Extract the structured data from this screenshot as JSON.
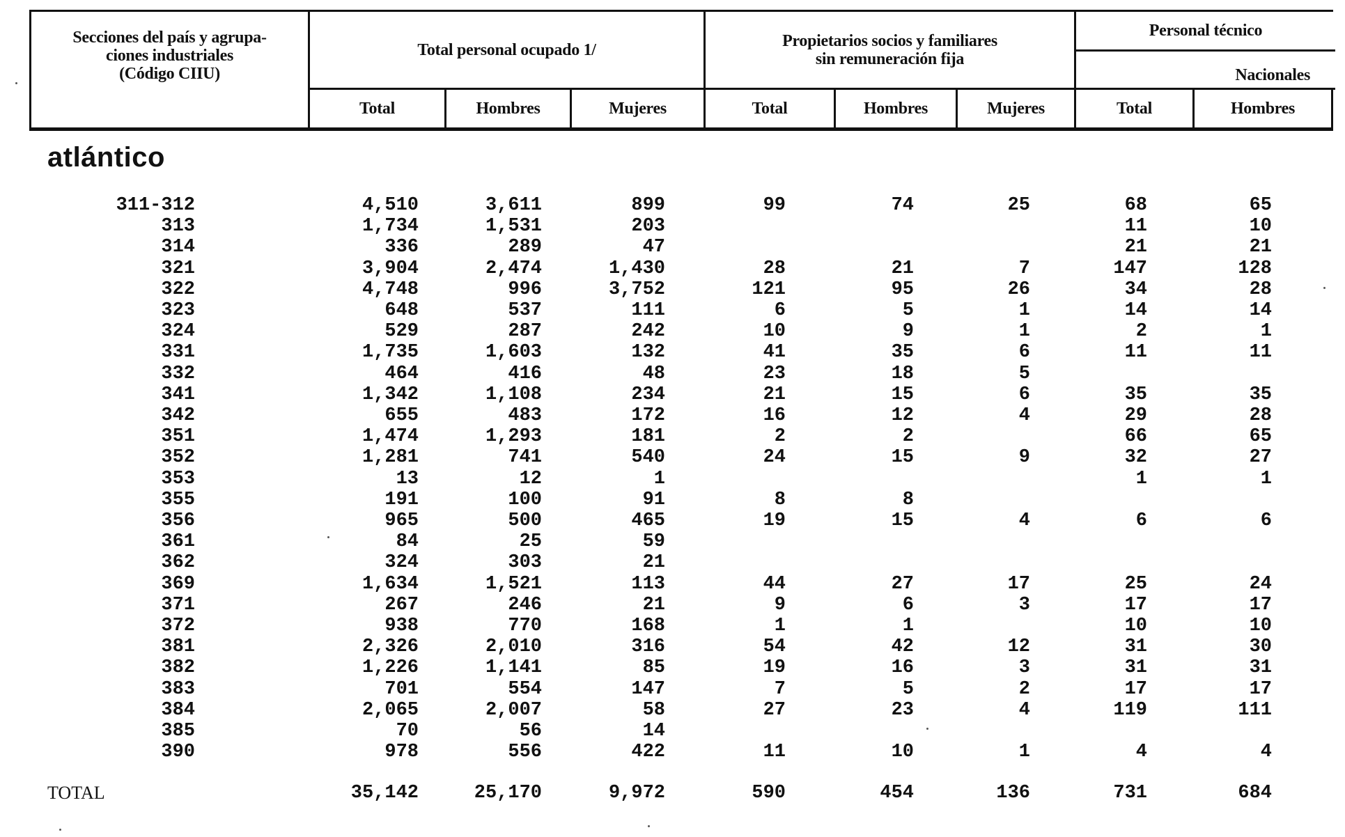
{
  "header": {
    "section_col": "Secciones del país y agrupaciones industriales (Código CIIU)",
    "section_col_lines": [
      "Secciones del país y agrupa-",
      "ciones industriales",
      "(Código CIIU)"
    ],
    "group_total": "Total personal ocupado 1/",
    "group_owners": "Propietarios socios y familiares sin remuneración fija",
    "group_owners_lines": [
      "Propietarios socios y familiares",
      "sin remuneración fija"
    ],
    "group_tech": "Personal técnico",
    "sub_nacionales": "Nacionales",
    "columns": [
      "Total",
      "Hombres",
      "Mujeres",
      "Total",
      "Hombres",
      "Mujeres",
      "Total",
      "Hombres"
    ]
  },
  "section": "atlántico",
  "rows": [
    {
      "code": "311-312",
      "v": [
        "4,510",
        "3,611",
        "899",
        "99",
        "74",
        "25",
        "68",
        "65"
      ]
    },
    {
      "code": "313",
      "v": [
        "1,734",
        "1,531",
        "203",
        "",
        "",
        "",
        "11",
        "10"
      ]
    },
    {
      "code": "314",
      "v": [
        "336",
        "289",
        "47",
        "",
        "",
        "",
        "21",
        "21"
      ]
    },
    {
      "code": "321",
      "v": [
        "3,904",
        "2,474",
        "1,430",
        "28",
        "21",
        "7",
        "147",
        "128"
      ]
    },
    {
      "code": "322",
      "v": [
        "4,748",
        "996",
        "3,752",
        "121",
        "95",
        "26",
        "34",
        "28"
      ]
    },
    {
      "code": "323",
      "v": [
        "648",
        "537",
        "111",
        "6",
        "5",
        "1",
        "14",
        "14"
      ]
    },
    {
      "code": "324",
      "v": [
        "529",
        "287",
        "242",
        "10",
        "9",
        "1",
        "2",
        "1"
      ]
    },
    {
      "code": "331",
      "v": [
        "1,735",
        "1,603",
        "132",
        "41",
        "35",
        "6",
        "11",
        "11"
      ]
    },
    {
      "code": "332",
      "v": [
        "464",
        "416",
        "48",
        "23",
        "18",
        "5",
        "",
        ""
      ]
    },
    {
      "code": "341",
      "v": [
        "1,342",
        "1,108",
        "234",
        "21",
        "15",
        "6",
        "35",
        "35"
      ]
    },
    {
      "code": "342",
      "v": [
        "655",
        "483",
        "172",
        "16",
        "12",
        "4",
        "29",
        "28"
      ]
    },
    {
      "code": "351",
      "v": [
        "1,474",
        "1,293",
        "181",
        "2",
        "2",
        "",
        "66",
        "65"
      ]
    },
    {
      "code": "352",
      "v": [
        "1,281",
        "741",
        "540",
        "24",
        "15",
        "9",
        "32",
        "27"
      ]
    },
    {
      "code": "353",
      "v": [
        "13",
        "12",
        "1",
        "",
        "",
        "",
        "1",
        "1"
      ]
    },
    {
      "code": "355",
      "v": [
        "191",
        "100",
        "91",
        "8",
        "8",
        "",
        "",
        ""
      ]
    },
    {
      "code": "356",
      "v": [
        "965",
        "500",
        "465",
        "19",
        "15",
        "4",
        "6",
        "6"
      ]
    },
    {
      "code": "361",
      "v": [
        "84",
        "25",
        "59",
        "",
        "",
        "",
        "",
        ""
      ]
    },
    {
      "code": "362",
      "v": [
        "324",
        "303",
        "21",
        "",
        "",
        "",
        "",
        ""
      ]
    },
    {
      "code": "369",
      "v": [
        "1,634",
        "1,521",
        "113",
        "44",
        "27",
        "17",
        "25",
        "24"
      ]
    },
    {
      "code": "371",
      "v": [
        "267",
        "246",
        "21",
        "9",
        "6",
        "3",
        "17",
        "17"
      ]
    },
    {
      "code": "372",
      "v": [
        "938",
        "770",
        "168",
        "1",
        "1",
        "",
        "10",
        "10"
      ]
    },
    {
      "code": "381",
      "v": [
        "2,326",
        "2,010",
        "316",
        "54",
        "42",
        "12",
        "31",
        "30"
      ]
    },
    {
      "code": "382",
      "v": [
        "1,226",
        "1,141",
        "85",
        "19",
        "16",
        "3",
        "31",
        "31"
      ]
    },
    {
      "code": "383",
      "v": [
        "701",
        "554",
        "147",
        "7",
        "5",
        "2",
        "17",
        "17"
      ]
    },
    {
      "code": "384",
      "v": [
        "2,065",
        "2,007",
        "58",
        "27",
        "23",
        "4",
        "119",
        "111"
      ]
    },
    {
      "code": "385",
      "v": [
        "70",
        "56",
        "14",
        "",
        "",
        "",
        "",
        ""
      ]
    },
    {
      "code": "390",
      "v": [
        "978",
        "556",
        "422",
        "11",
        "10",
        "1",
        "4",
        "4"
      ]
    }
  ],
  "total": {
    "label": "TOTAL",
    "v": [
      "35,142",
      "25,170",
      "9,972",
      "590",
      "454",
      "136",
      "731",
      "684"
    ]
  }
}
